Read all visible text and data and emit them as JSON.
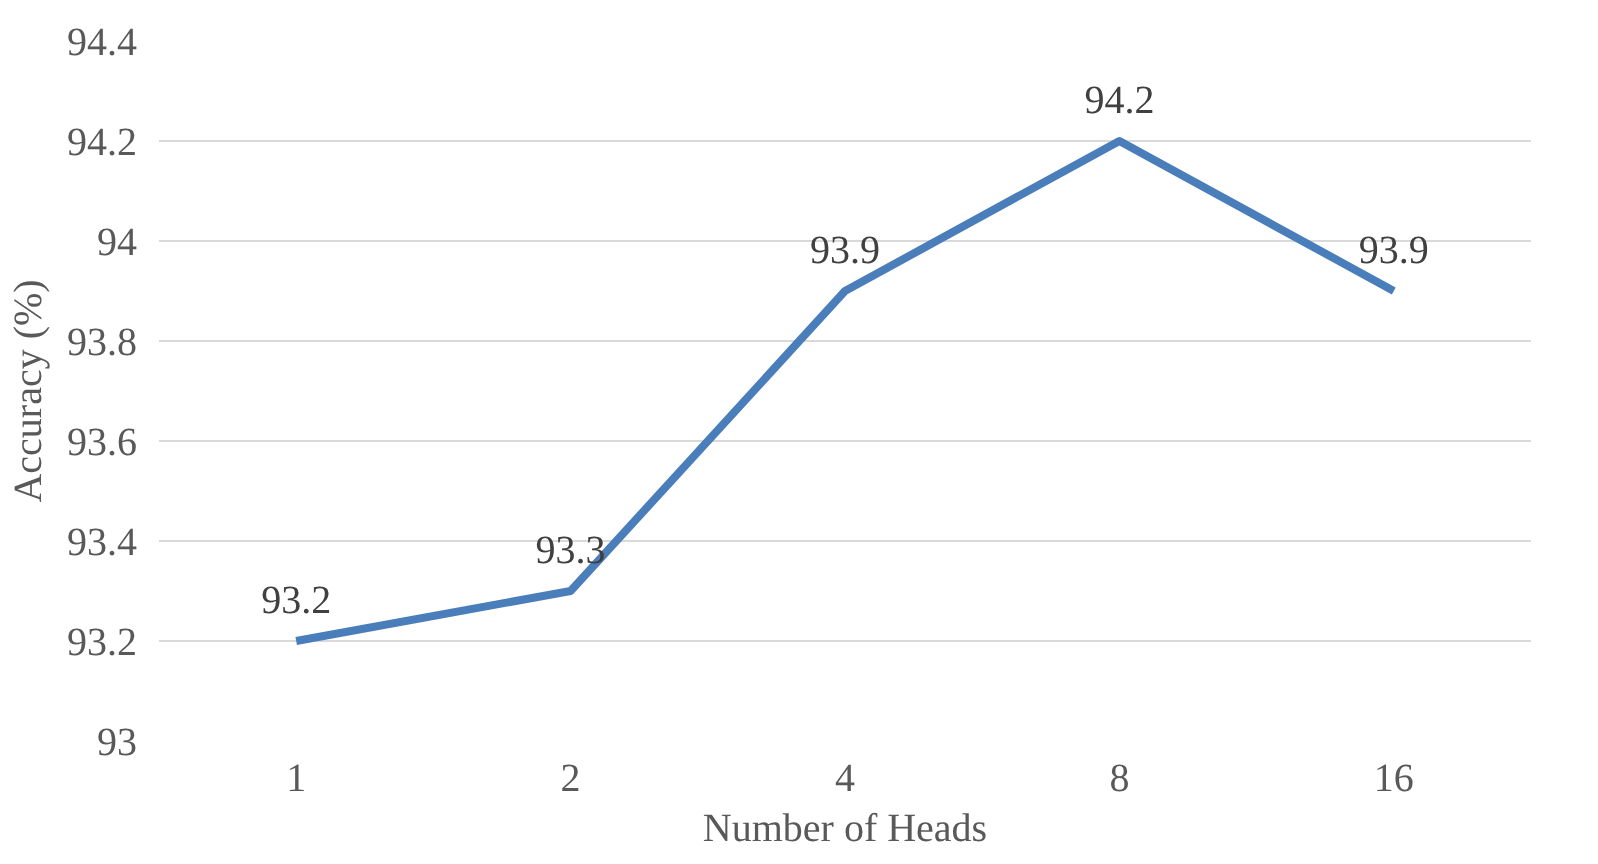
{
  "chart_data": {
    "type": "line",
    "xlabel": "Number of Heads",
    "ylabel": "Accuracy (%)",
    "categories": [
      "1",
      "2",
      "4",
      "8",
      "16"
    ],
    "series": [
      {
        "color": "#4a7ebb",
        "values": [
          93.2,
          93.3,
          93.9,
          94.2,
          93.9
        ]
      }
    ],
    "ylim": [
      93,
      94.4
    ],
    "yticks": [
      93,
      93.2,
      93.4,
      93.6,
      93.8,
      94,
      94.2,
      94.4
    ],
    "grid": "y",
    "data_labels": true,
    "marker": "none",
    "line_style": "solid"
  }
}
